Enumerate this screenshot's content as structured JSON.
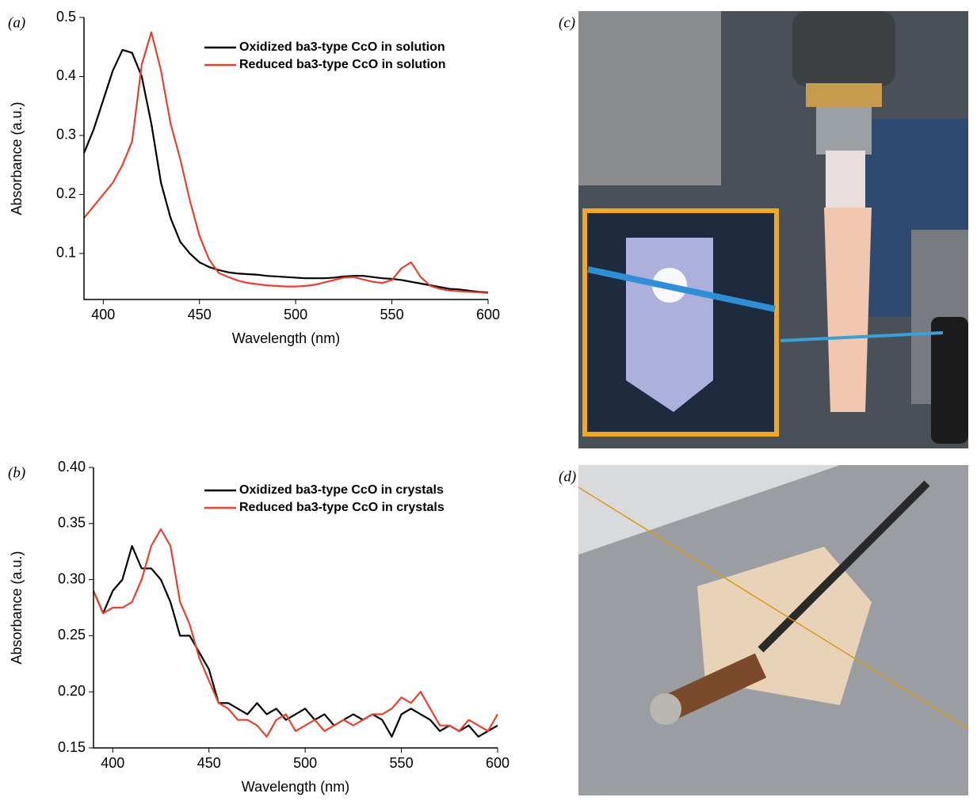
{
  "chart_data": [
    {
      "type": "line",
      "panel": "(a)",
      "x_label": "Wavelength (nm)",
      "y_label": "Absorbance (a.u.)",
      "x": [
        390,
        395,
        400,
        405,
        410,
        415,
        420,
        425,
        430,
        435,
        440,
        445,
        450,
        455,
        460,
        465,
        470,
        475,
        480,
        485,
        490,
        495,
        500,
        505,
        510,
        515,
        520,
        525,
        530,
        535,
        540,
        545,
        550,
        555,
        560,
        565,
        570,
        575,
        580,
        585,
        590,
        595,
        600
      ],
      "series": [
        {
          "name": "Oxidized ba3-type CcO in solution",
          "color": "#000000",
          "values": [
            0.27,
            0.31,
            0.36,
            0.41,
            0.445,
            0.44,
            0.4,
            0.32,
            0.22,
            0.16,
            0.12,
            0.1,
            0.085,
            0.077,
            0.072,
            0.068,
            0.066,
            0.065,
            0.064,
            0.062,
            0.061,
            0.06,
            0.059,
            0.058,
            0.058,
            0.058,
            0.059,
            0.061,
            0.062,
            0.062,
            0.06,
            0.058,
            0.057,
            0.055,
            0.052,
            0.049,
            0.046,
            0.043,
            0.04,
            0.039,
            0.037,
            0.035,
            0.034
          ]
        },
        {
          "name": "Reduced ba3-type CcO in solution",
          "color": "#e8412c",
          "values": [
            0.16,
            0.18,
            0.2,
            0.22,
            0.25,
            0.29,
            0.42,
            0.475,
            0.41,
            0.32,
            0.26,
            0.19,
            0.13,
            0.09,
            0.067,
            0.06,
            0.054,
            0.05,
            0.048,
            0.046,
            0.045,
            0.044,
            0.044,
            0.045,
            0.047,
            0.051,
            0.055,
            0.059,
            0.06,
            0.056,
            0.052,
            0.05,
            0.055,
            0.075,
            0.085,
            0.06,
            0.045,
            0.04,
            0.037,
            0.036,
            0.035,
            0.034,
            0.033
          ]
        }
      ],
      "xlim": [
        390,
        600
      ],
      "xticks": [
        400,
        450,
        500,
        550,
        600
      ],
      "ylim": [
        0.022,
        0.5
      ],
      "yticks": [
        0.1,
        0.2,
        0.3,
        0.4,
        0.5
      ]
    },
    {
      "type": "line",
      "panel": "(b)",
      "x_label": "Wavelength (nm)",
      "y_label": "Absorbance (a.u.)",
      "x": [
        390,
        395,
        400,
        405,
        410,
        415,
        420,
        425,
        430,
        435,
        440,
        445,
        450,
        455,
        460,
        465,
        470,
        475,
        480,
        485,
        490,
        495,
        500,
        505,
        510,
        515,
        520,
        525,
        530,
        535,
        540,
        545,
        550,
        555,
        560,
        565,
        570,
        575,
        580,
        585,
        590,
        595,
        600
      ],
      "series": [
        {
          "name": "Oxidized ba3-type CcO in crystals",
          "color": "#000000",
          "values": [
            0.29,
            0.27,
            0.29,
            0.3,
            0.33,
            0.31,
            0.31,
            0.3,
            0.28,
            0.25,
            0.25,
            0.235,
            0.22,
            0.19,
            0.19,
            0.185,
            0.18,
            0.19,
            0.18,
            0.185,
            0.175,
            0.18,
            0.185,
            0.175,
            0.18,
            0.17,
            0.175,
            0.18,
            0.175,
            0.18,
            0.175,
            0.16,
            0.18,
            0.185,
            0.18,
            0.175,
            0.165,
            0.17,
            0.165,
            0.17,
            0.16,
            0.165,
            0.17
          ]
        },
        {
          "name": "Reduced ba3-type CcO in crystals",
          "color": "#e8412c",
          "values": [
            0.29,
            0.27,
            0.275,
            0.275,
            0.28,
            0.3,
            0.33,
            0.345,
            0.33,
            0.28,
            0.26,
            0.23,
            0.21,
            0.19,
            0.185,
            0.175,
            0.175,
            0.17,
            0.16,
            0.175,
            0.18,
            0.165,
            0.17,
            0.175,
            0.165,
            0.17,
            0.175,
            0.17,
            0.175,
            0.18,
            0.18,
            0.185,
            0.195,
            0.19,
            0.2,
            0.185,
            0.17,
            0.17,
            0.165,
            0.175,
            0.17,
            0.165,
            0.18
          ]
        }
      ],
      "xlim": [
        390,
        600
      ],
      "xticks": [
        400,
        450,
        500,
        550,
        600
      ],
      "ylim": [
        0.15,
        0.4
      ],
      "yticks": [
        0.15,
        {
          "value": 0.2,
          "label": "0.20"
        },
        0.25,
        {
          "value": 0.3,
          "label": "0.30"
        },
        0.35,
        {
          "value": 0.4,
          "label": "0.40"
        }
      ]
    }
  ],
  "photos": [
    {
      "panel": "(c)"
    },
    {
      "panel": "(d)"
    }
  ]
}
